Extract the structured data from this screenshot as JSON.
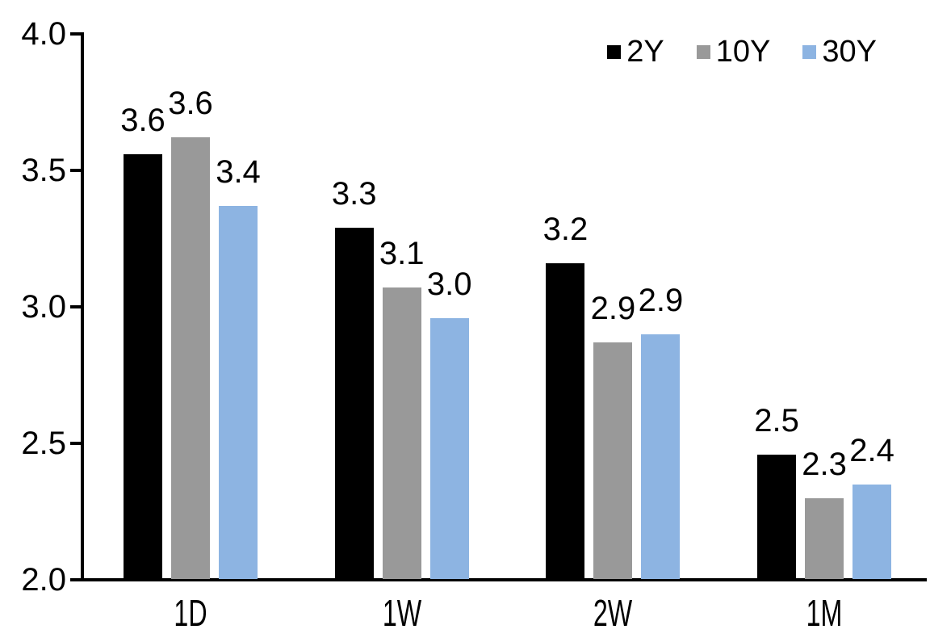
{
  "chart_data": {
    "type": "bar",
    "title": "",
    "xlabel": "",
    "ylabel": "",
    "background": "#FFFFFF",
    "axis_color": "#000000",
    "grid": false,
    "legend_position": "top-right",
    "ylim": [
      2.0,
      4.0
    ],
    "yticks": [
      {
        "value": 2.0,
        "label": "2.0"
      },
      {
        "value": 2.5,
        "label": "2.5"
      },
      {
        "value": 3.0,
        "label": "3.0"
      },
      {
        "value": 3.5,
        "label": "3.5"
      },
      {
        "value": 4.0,
        "label": "4.0"
      }
    ],
    "categories": [
      "1D",
      "1W",
      "2W",
      "1M"
    ],
    "series": [
      {
        "name": "2Y",
        "color": "#000000",
        "values": [
          3.56,
          3.29,
          3.16,
          2.46
        ],
        "data_labels": [
          "3.6",
          "3.3",
          "3.2",
          "2.5"
        ]
      },
      {
        "name": "10Y",
        "color": "#999999",
        "values": [
          3.62,
          3.07,
          2.87,
          2.3
        ],
        "data_labels": [
          "3.6",
          "3.1",
          "2.9",
          "2.3"
        ]
      },
      {
        "name": "30Y",
        "color": "#8DB4E2",
        "values": [
          3.37,
          2.96,
          2.9,
          2.35
        ],
        "data_labels": [
          "3.4",
          "3.0",
          "2.9",
          "2.4"
        ]
      }
    ]
  }
}
